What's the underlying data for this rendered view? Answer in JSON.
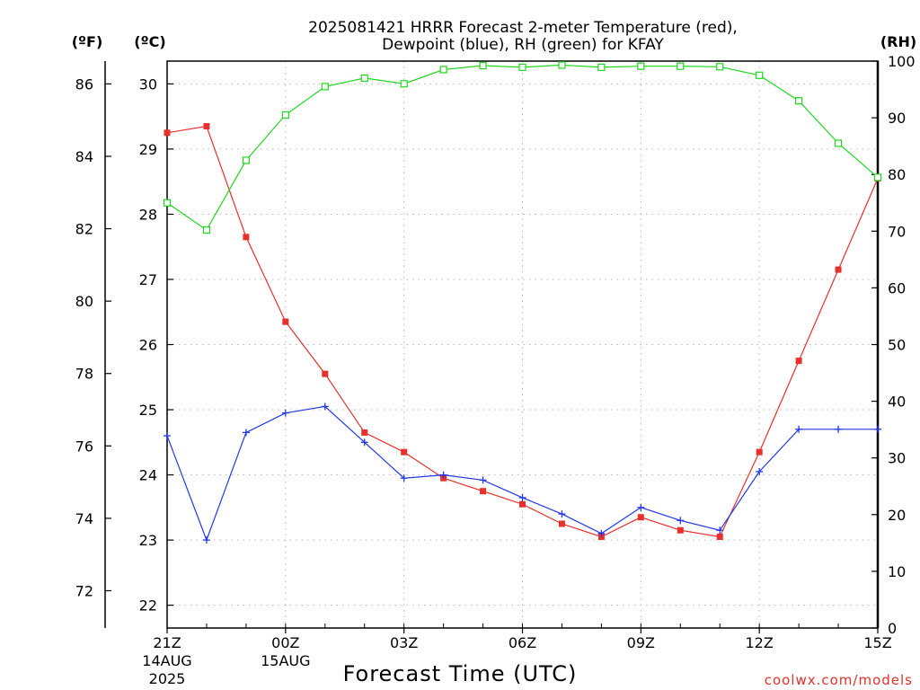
{
  "chart_data": {
    "type": "line",
    "title_line1": "2025081421 HRRR Forecast 2-meter Temperature (red),",
    "title_line2": "Dewpoint (blue), RH (green) for KFAY",
    "xlabel": "Forecast Time (UTC)",
    "credit": "coolwx.com/models",
    "unit_left_f": "(ºF)",
    "unit_left_c": "(ºC)",
    "unit_right": "(RH)",
    "x_ticks": [
      {
        "hour": 0,
        "l1": "21Z",
        "l2": "14AUG",
        "l3": "2025"
      },
      {
        "hour": 3,
        "l1": "00Z",
        "l2": "15AUG",
        "l3": ""
      },
      {
        "hour": 6,
        "l1": "03Z",
        "l2": "",
        "l3": ""
      },
      {
        "hour": 9,
        "l1": "06Z",
        "l2": "",
        "l3": ""
      },
      {
        "hour": 12,
        "l1": "09Z",
        "l2": "",
        "l3": ""
      },
      {
        "hour": 15,
        "l1": "12Z",
        "l2": "",
        "l3": ""
      },
      {
        "hour": 18,
        "l1": "15Z",
        "l2": "",
        "l3": ""
      }
    ],
    "xlim": [
      0,
      18
    ],
    "ylim_c": [
      21.65,
      30.35
    ],
    "ylim_rh": [
      0,
      100
    ],
    "c_ticks": [
      22,
      23,
      24,
      25,
      26,
      27,
      28,
      29,
      30
    ],
    "f_ticks": [
      72,
      74,
      76,
      78,
      80,
      82,
      84,
      86
    ],
    "rh_ticks": [
      0,
      10,
      20,
      30,
      40,
      50,
      60,
      70,
      80,
      90,
      100
    ],
    "grid": true,
    "colors": {
      "temperature": "#e8302c",
      "dewpoint": "#2338e8",
      "rh": "#1fd81f"
    },
    "series": [
      {
        "name": "Temperature",
        "marker": "filled-square",
        "values": [
          29.25,
          29.35,
          27.65,
          26.35,
          25.55,
          24.65,
          24.35,
          23.95,
          23.75,
          23.55,
          23.25,
          23.05,
          23.35,
          23.15,
          23.05,
          24.35,
          25.75,
          27.15,
          28.55
        ]
      },
      {
        "name": "Dewpoint",
        "marker": "plus",
        "values": [
          24.6,
          23.0,
          24.65,
          24.95,
          25.05,
          24.5,
          23.95,
          24.0,
          23.92,
          23.65,
          23.4,
          23.1,
          23.5,
          23.3,
          23.15,
          24.05,
          24.7,
          24.7,
          24.7
        ]
      },
      {
        "name": "RH",
        "marker": "open-square",
        "axis": "rh",
        "values": [
          75,
          70.2,
          82.5,
          90.5,
          95.5,
          97,
          96,
          98.5,
          99.2,
          98.9,
          99.3,
          98.9,
          99.1,
          99.1,
          99.0,
          97.5,
          93,
          85.5,
          79.5
        ]
      }
    ]
  }
}
